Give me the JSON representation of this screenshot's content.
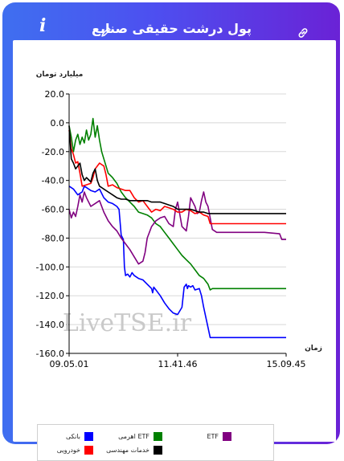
{
  "header": {
    "title": "پول درشت حقیقی صنایع"
  },
  "icons": {
    "info": "info-icon",
    "edit": "pencil-icon",
    "link": "link-icon"
  },
  "watermark": "LiveTSE.ir",
  "colors": {
    "frame_start": "#3f6ff0",
    "frame_end": "#6a22d6"
  },
  "chart_data": {
    "type": "line",
    "ylabel": "میلیارد تومان",
    "xlabel": "زمان",
    "ylim": [
      -160,
      20
    ],
    "yticks": [
      20,
      0,
      -20,
      -40,
      -60,
      -80,
      -100,
      -120,
      -140,
      -160
    ],
    "ytick_labels": [
      "20.0",
      "0.0",
      "-20.0",
      "-40.0",
      "-60.0",
      "-80.0",
      "-100.0",
      "-120.0",
      "-140.0",
      "-160.0"
    ],
    "xlim": [
      0,
      100
    ],
    "xtick_positions": [
      0,
      50,
      100
    ],
    "xtick_labels": [
      "09.05.01",
      "11.41.46",
      "15.09.45"
    ],
    "grid": "horizontal",
    "legend_position": "bottom",
    "series": [
      {
        "name": "بانکی",
        "color": "#0000ff",
        "x": [
          0,
          2,
          4,
          6,
          7,
          8,
          10,
          12,
          14,
          16,
          18,
          20,
          22,
          23,
          24,
          25,
          25.5,
          26,
          27,
          28,
          29,
          30,
          32,
          34,
          36,
          38,
          38.5,
          39,
          40,
          42,
          44,
          46,
          48,
          50,
          52,
          53,
          54,
          54.5,
          55,
          56,
          57,
          58,
          60,
          61,
          62,
          64,
          65,
          100
        ],
        "y": [
          -44,
          -46,
          -50,
          -48,
          -44,
          -45,
          -47,
          -48,
          -46,
          -52,
          -55,
          -56,
          -58,
          -60,
          -78,
          -81,
          -100,
          -106,
          -105,
          -107,
          -104,
          -106,
          -108,
          -109,
          -112,
          -115,
          -118,
          -114,
          -116,
          -120,
          -125,
          -129,
          -132,
          -133,
          -128,
          -114,
          -112,
          -115,
          -113,
          -114,
          -113,
          -116,
          -115,
          -120,
          -128,
          -142,
          -149,
          -149
        ]
      },
      {
        "name": "اهرمی ETF",
        "color": "#008000",
        "x": [
          0,
          1,
          2,
          3,
          4,
          5,
          6,
          7,
          8,
          9,
          10,
          11,
          12,
          13,
          14,
          15,
          16,
          17,
          18,
          20,
          22,
          24,
          26,
          28,
          30,
          32,
          34,
          36,
          38,
          40,
          42,
          44,
          46,
          48,
          50,
          52,
          54,
          56,
          58,
          60,
          62,
          64,
          65,
          66,
          100
        ],
        "y": [
          -2,
          -10,
          -20,
          -12,
          -8,
          -15,
          -10,
          -14,
          -5,
          -12,
          -8,
          3,
          -10,
          -2,
          -12,
          -20,
          -25,
          -30,
          -35,
          -38,
          -42,
          -48,
          -52,
          -55,
          -58,
          -62,
          -63,
          -64,
          -66,
          -70,
          -72,
          -76,
          -80,
          -84,
          -88,
          -92,
          -95,
          -98,
          -102,
          -106,
          -108,
          -112,
          -116,
          -115,
          -115
        ]
      },
      {
        "name": "ETF",
        "color": "#800080",
        "x": [
          0,
          1,
          2,
          3,
          4,
          5,
          6,
          7,
          8,
          10,
          12,
          14,
          16,
          18,
          20,
          22,
          24,
          26,
          28,
          30,
          32,
          34,
          35,
          36,
          38,
          40,
          42,
          44,
          46,
          48,
          49,
          50,
          52,
          54,
          55,
          56,
          58,
          59,
          60,
          61,
          62,
          63,
          64,
          66,
          68,
          70,
          72,
          80,
          90,
          97,
          98,
          100
        ],
        "y": [
          -60,
          -66,
          -62,
          -65,
          -58,
          -50,
          -55,
          -48,
          -52,
          -58,
          -56,
          -54,
          -62,
          -68,
          -72,
          -75,
          -80,
          -84,
          -88,
          -93,
          -98,
          -96,
          -90,
          -80,
          -72,
          -68,
          -66,
          -65,
          -70,
          -72,
          -60,
          -55,
          -72,
          -75,
          -65,
          -52,
          -58,
          -63,
          -62,
          -54,
          -48,
          -55,
          -58,
          -74,
          -76,
          -76,
          -76,
          -76,
          -76,
          -77,
          -81,
          -81
        ]
      },
      {
        "name": "خودرویی",
        "color": "#ff0000",
        "x": [
          0,
          1,
          2,
          3,
          4,
          5,
          6,
          8,
          10,
          11,
          12,
          14,
          16,
          17,
          18,
          20,
          22,
          24,
          26,
          28,
          30,
          32,
          34,
          36,
          38,
          40,
          42,
          44,
          46,
          48,
          50,
          52,
          54,
          56,
          58,
          60,
          62,
          64,
          65,
          66,
          100
        ],
        "y": [
          -5,
          -18,
          -22,
          -28,
          -27,
          -35,
          -44,
          -43,
          -42,
          -38,
          -32,
          -28,
          -30,
          -36,
          -44,
          -43,
          -45,
          -46,
          -47,
          -47,
          -52,
          -55,
          -54,
          -58,
          -62,
          -60,
          -61,
          -58,
          -59,
          -60,
          -62,
          -62,
          -60,
          -61,
          -63,
          -62,
          -64,
          -65,
          -70,
          -70,
          -70
        ]
      },
      {
        "name": "خدمات مهندسی",
        "color": "#000000",
        "x": [
          0,
          1,
          2,
          3,
          4,
          5,
          6,
          7,
          8,
          10,
          11,
          12,
          13,
          14,
          16,
          18,
          20,
          22,
          24,
          26,
          28,
          30,
          32,
          34,
          36,
          38,
          40,
          42,
          44,
          46,
          48,
          50,
          52,
          54,
          56,
          58,
          60,
          62,
          64,
          66,
          100
        ],
        "y": [
          -2,
          -25,
          -28,
          -32,
          -30,
          -28,
          -36,
          -40,
          -38,
          -41,
          -35,
          -32,
          -40,
          -44,
          -46,
          -48,
          -50,
          -52,
          -53,
          -53,
          -54,
          -54,
          -54,
          -54,
          -54,
          -55,
          -55,
          -55,
          -56,
          -57,
          -58,
          -60,
          -60,
          -60,
          -60,
          -61,
          -62,
          -62,
          -63,
          -63,
          -63
        ]
      }
    ]
  }
}
